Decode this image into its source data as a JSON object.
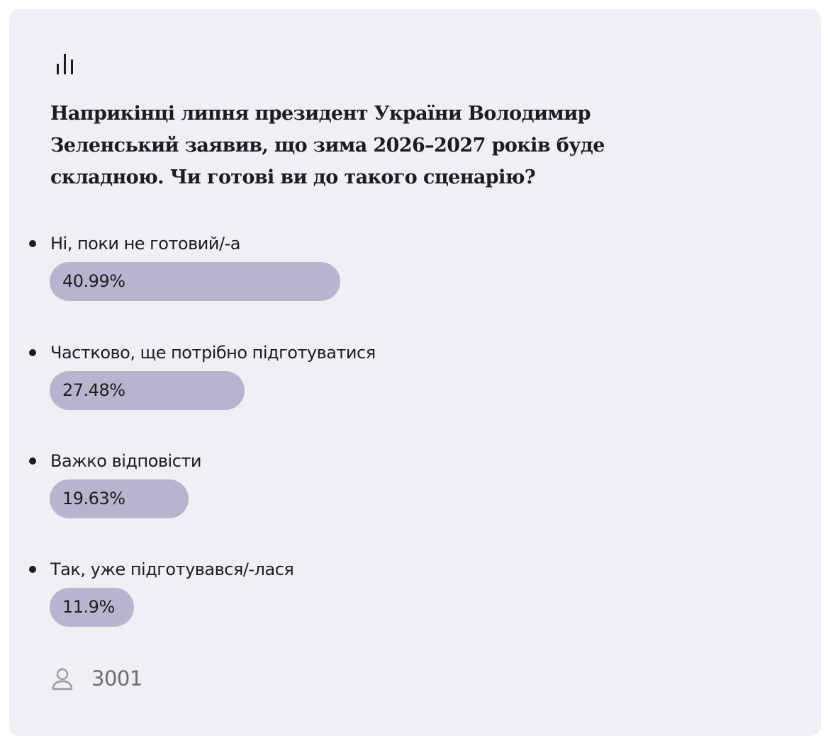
{
  "poll": {
    "icon": "bar-chart-icon",
    "question": "Наприкінці липня президент України Володимир Зеленський заявив, що зима 2026–2027 років буде складною. Чи готові ви до такого сценарію?",
    "options": [
      {
        "label": "Ні, поки не готовий/-а",
        "percent_text": "40.99%",
        "percent": 40.99
      },
      {
        "label": "Частково, ще потрібно підготуватися",
        "percent_text": "27.48%",
        "percent": 27.48
      },
      {
        "label": "Важко відповісти",
        "percent_text": "19.63%",
        "percent": 19.63
      },
      {
        "label": "Так, уже підготувався/-лася",
        "percent_text": "11.9%",
        "percent": 11.9
      }
    ],
    "votes_icon": "user-icon",
    "votes": "3001",
    "colors": {
      "card_background": "#f0eff4",
      "bar_fill": "#b8b4cd",
      "text": "#1d1d1f",
      "muted": "#6e6d73"
    }
  }
}
